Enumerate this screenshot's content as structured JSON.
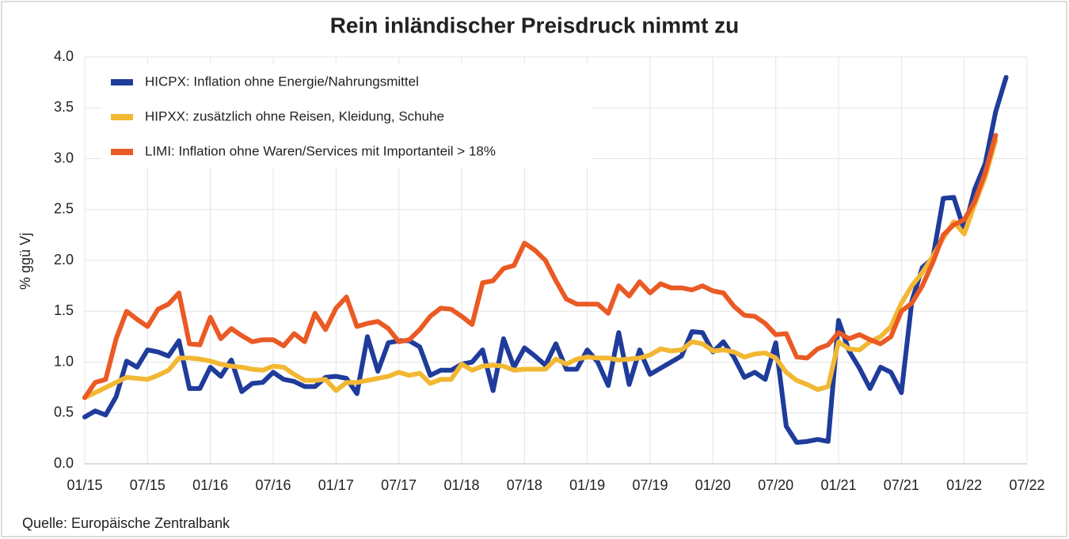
{
  "chart_data": {
    "type": "line",
    "title": "Rein inländischer Preisdruck nimmt zu",
    "ylabel": "% ggü Vj",
    "source": "Quelle: Europäische Zentralbank",
    "grid": true,
    "legend": "upper left",
    "ylim": [
      0,
      4
    ],
    "yticks": [
      {
        "value": 0,
        "label": "0.0"
      },
      0.5,
      {
        "value": 1,
        "label": "1.0"
      },
      1.5,
      {
        "value": 2,
        "label": "2.0"
      },
      2.5,
      {
        "value": 3,
        "label": "3.0"
      },
      3.5,
      {
        "value": 4,
        "label": "4.0"
      }
    ],
    "categories": [
      "01/15",
      null,
      null,
      null,
      null,
      null,
      "07/15",
      null,
      null,
      null,
      null,
      null,
      "01/16",
      null,
      null,
      null,
      null,
      null,
      "07/16",
      null,
      null,
      null,
      null,
      null,
      "01/17",
      null,
      null,
      null,
      null,
      null,
      "07/17",
      null,
      null,
      null,
      null,
      null,
      "01/18",
      null,
      null,
      null,
      null,
      null,
      "07/18",
      null,
      null,
      null,
      null,
      null,
      "01/19",
      null,
      null,
      null,
      null,
      null,
      "07/19",
      null,
      null,
      null,
      null,
      null,
      "01/20",
      null,
      null,
      null,
      null,
      null,
      "07/20",
      null,
      null,
      null,
      null,
      null,
      "01/21",
      null,
      null,
      null,
      null,
      null,
      "07/21",
      null,
      null,
      null,
      null,
      null,
      "01/22",
      null,
      null,
      null,
      null,
      null,
      "07/22"
    ],
    "series": [
      {
        "name": "HICPX: Inflation ohne Energie/Nahrungsmittel",
        "color": "#1f3c9b",
        "values": [
          0.46,
          0.52,
          0.48,
          0.66,
          1.01,
          0.95,
          1.12,
          1.1,
          1.06,
          1.21,
          0.74,
          0.74,
          0.95,
          0.86,
          1.02,
          0.71,
          0.79,
          0.8,
          0.9,
          0.83,
          0.81,
          0.76,
          0.76,
          0.85,
          0.86,
          0.84,
          0.69,
          1.25,
          0.91,
          1.19,
          1.21,
          1.21,
          1.15,
          0.87,
          0.92,
          0.92,
          0.98,
          1.0,
          1.12,
          0.72,
          1.23,
          0.95,
          1.14,
          1.06,
          0.97,
          1.18,
          0.93,
          0.93,
          1.12,
          1.0,
          0.77,
          1.29,
          0.78,
          1.12,
          0.88,
          0.94,
          1.0,
          1.06,
          1.3,
          1.29,
          1.1,
          1.2,
          1.05,
          0.85,
          0.9,
          0.83,
          1.19,
          0.37,
          0.21,
          0.22,
          0.24,
          0.22,
          1.41,
          1.11,
          0.94,
          0.74,
          0.95,
          0.9,
          0.7,
          1.6,
          1.93,
          2.02,
          2.61,
          2.62,
          2.3,
          2.7,
          2.95,
          3.46,
          3.8,
          null,
          null
        ]
      },
      {
        "name": "HIPXX: zusätzlich ohne Reisen, Kleidung, Schuhe",
        "color": "#f2b733",
        "values": [
          0.65,
          0.7,
          0.75,
          0.8,
          0.85,
          0.84,
          0.83,
          0.87,
          0.92,
          1.04,
          1.04,
          1.03,
          1.01,
          0.98,
          0.96,
          0.95,
          0.93,
          0.92,
          0.96,
          0.95,
          0.88,
          0.82,
          0.82,
          0.83,
          0.72,
          0.8,
          0.8,
          0.82,
          0.84,
          0.86,
          0.9,
          0.87,
          0.89,
          0.79,
          0.83,
          0.83,
          0.98,
          0.92,
          0.96,
          0.97,
          0.96,
          0.92,
          0.93,
          0.93,
          0.93,
          1.03,
          0.98,
          1.03,
          1.05,
          1.04,
          1.04,
          1.02,
          1.03,
          1.04,
          1.07,
          1.13,
          1.11,
          1.12,
          1.2,
          1.18,
          1.11,
          1.12,
          1.1,
          1.05,
          1.08,
          1.09,
          1.04,
          0.9,
          0.82,
          0.78,
          0.73,
          0.76,
          1.2,
          1.13,
          1.12,
          1.2,
          1.25,
          1.35,
          1.58,
          1.75,
          1.88,
          2.04,
          2.22,
          2.38,
          2.26,
          2.55,
          2.82,
          3.18,
          null,
          null,
          null
        ]
      },
      {
        "name": "LIMI: Inflation ohne Waren/Services mit Importanteil > 18%",
        "color": "#ea5a24",
        "values": [
          0.65,
          0.8,
          0.83,
          1.23,
          1.5,
          1.42,
          1.35,
          1.52,
          1.57,
          1.68,
          1.18,
          1.17,
          1.44,
          1.23,
          1.33,
          1.26,
          1.2,
          1.22,
          1.22,
          1.16,
          1.28,
          1.2,
          1.48,
          1.32,
          1.53,
          1.64,
          1.35,
          1.38,
          1.4,
          1.33,
          1.2,
          1.22,
          1.32,
          1.45,
          1.53,
          1.52,
          1.45,
          1.37,
          1.78,
          1.8,
          1.92,
          1.95,
          2.17,
          2.1,
          2.0,
          1.8,
          1.62,
          1.57,
          1.57,
          1.57,
          1.48,
          1.75,
          1.65,
          1.79,
          1.68,
          1.77,
          1.73,
          1.73,
          1.71,
          1.75,
          1.7,
          1.68,
          1.55,
          1.46,
          1.45,
          1.38,
          1.27,
          1.28,
          1.05,
          1.04,
          1.13,
          1.17,
          1.29,
          1.23,
          1.27,
          1.22,
          1.18,
          1.25,
          1.5,
          1.58,
          1.75,
          1.98,
          2.25,
          2.35,
          2.4,
          2.58,
          2.86,
          3.23,
          null,
          null,
          null
        ]
      }
    ]
  }
}
